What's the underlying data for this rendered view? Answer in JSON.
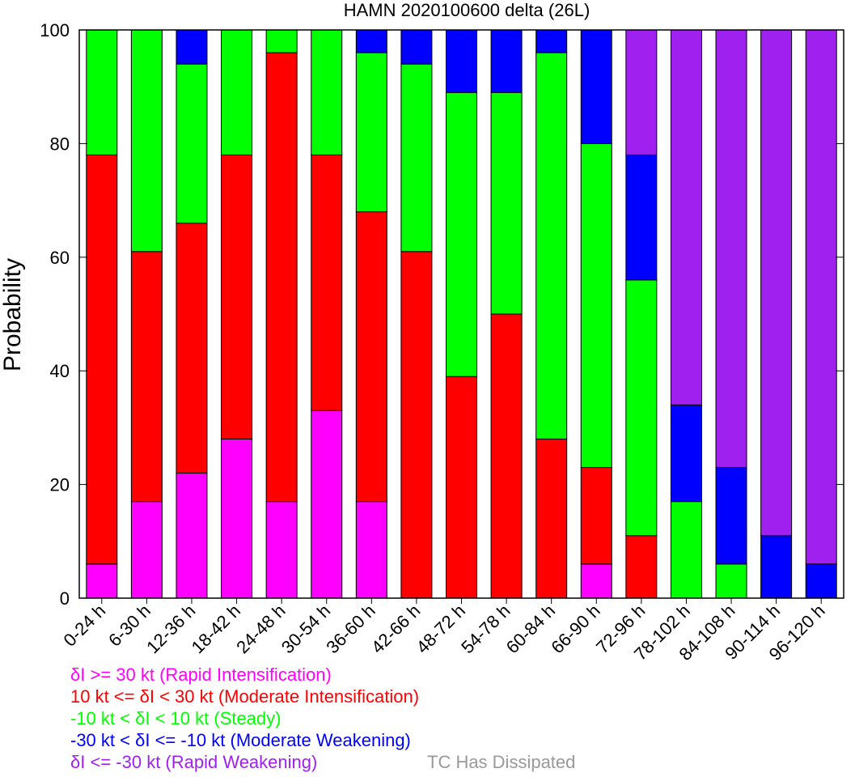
{
  "chart_data": {
    "type": "bar",
    "stacked": true,
    "title": "HAMN 2020100600 delta (26L)",
    "ylabel": "Probability",
    "xlabel": "",
    "ylim": [
      0,
      100
    ],
    "yticks": [
      0,
      20,
      40,
      60,
      80,
      100
    ],
    "grid": false,
    "categories": [
      "0-24 h",
      "6-30 h",
      "12-36 h",
      "18-42 h",
      "24-48 h",
      "30-54 h",
      "36-60 h",
      "42-66 h",
      "48-72 h",
      "54-78 h",
      "60-84 h",
      "66-90 h",
      "72-96 h",
      "78-102 h",
      "84-108 h",
      "90-114 h",
      "96-120 h"
    ],
    "series": [
      {
        "key": "ri",
        "color": "#ff00ff",
        "values": [
          6,
          17,
          22,
          28,
          17,
          33,
          17,
          0,
          0,
          0,
          0,
          6,
          0,
          0,
          0,
          0,
          0
        ]
      },
      {
        "key": "mi",
        "color": "#ff0000",
        "values": [
          72,
          44,
          44,
          50,
          79,
          45,
          51,
          61,
          39,
          50,
          28,
          17,
          11,
          0,
          0,
          0,
          0
        ]
      },
      {
        "key": "st",
        "color": "#00ff00",
        "values": [
          22,
          39,
          28,
          22,
          4,
          22,
          28,
          33,
          50,
          39,
          68,
          57,
          45,
          17,
          6,
          0,
          0
        ]
      },
      {
        "key": "mw",
        "color": "#0000ff",
        "values": [
          0,
          0,
          6,
          0,
          0,
          0,
          4,
          6,
          11,
          11,
          4,
          20,
          22,
          17,
          17,
          11,
          6
        ]
      },
      {
        "key": "rw",
        "color": "#a020f0",
        "values": [
          0,
          0,
          0,
          0,
          0,
          0,
          0,
          0,
          0,
          0,
          0,
          0,
          22,
          66,
          77,
          89,
          94
        ]
      }
    ],
    "legend": {
      "placement": "bottom-left",
      "entries": [
        {
          "text": "δI >= 30 kt (Rapid Intensification)",
          "color": "#ff00ff"
        },
        {
          "text": "10 kt <= δI < 30 kt (Moderate Intensification)",
          "color": "#ff0000"
        },
        {
          "text": "-10 kt < δI < 10 kt (Steady)",
          "color": "#00ff00"
        },
        {
          "text": "-30 kt < δI <= -10 kt (Moderate Weakening)",
          "color": "#0000ff"
        },
        {
          "text": "δI <= -30 kt (Rapid Weakening)",
          "color": "#a020f0"
        }
      ]
    },
    "dissipated_label": {
      "text": "TC Has Dissipated",
      "color": "#999999"
    }
  }
}
